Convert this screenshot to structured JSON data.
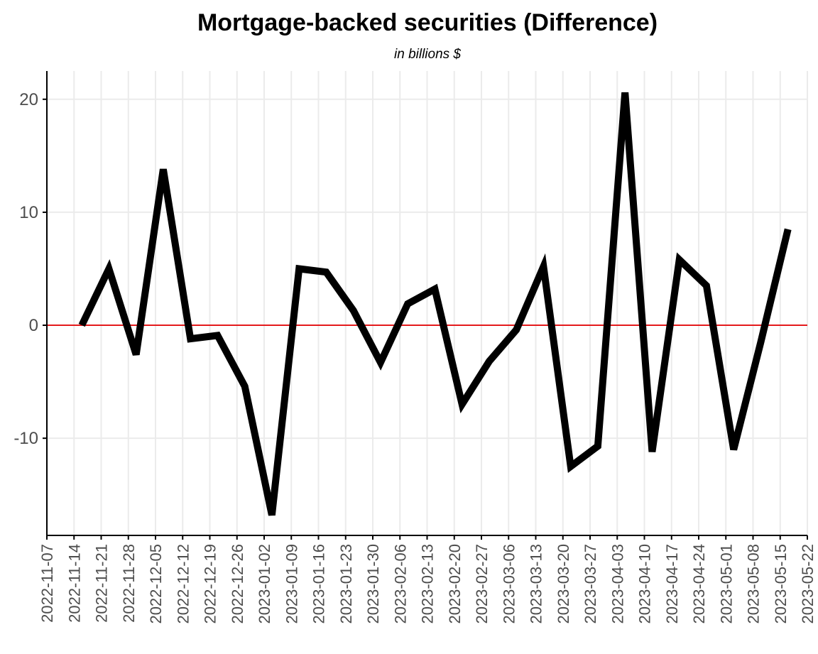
{
  "chart_data": {
    "type": "line",
    "title": "Mortgage-backed securities (Difference)",
    "subtitle": "in billions $",
    "xlabel": "",
    "ylabel": "",
    "x_tick_labels": [
      "2022-11-07",
      "2022-11-14",
      "2022-11-21",
      "2022-11-28",
      "2022-12-05",
      "2022-12-12",
      "2022-12-19",
      "2022-12-26",
      "2023-01-02",
      "2023-01-09",
      "2023-01-16",
      "2023-01-23",
      "2023-01-30",
      "2023-02-06",
      "2023-02-13",
      "2023-02-20",
      "2023-02-27",
      "2023-03-06",
      "2023-03-13",
      "2023-03-20",
      "2023-03-27",
      "2023-04-03",
      "2023-04-10",
      "2023-04-17",
      "2023-04-24",
      "2023-05-01",
      "2023-05-08",
      "2023-05-15",
      "2023-05-22"
    ],
    "y_tick_labels": [
      "-10",
      "0",
      "10",
      "20"
    ],
    "y_ticks": [
      -10,
      0,
      10,
      20
    ],
    "ylim": [
      -18.6,
      22.5
    ],
    "xlim": [
      "2022-11-07",
      "2023-05-22"
    ],
    "reference_line": {
      "y": 0,
      "color": "#e41a1c"
    },
    "grid": true,
    "series": [
      {
        "color": "#000000",
        "points": [
          {
            "x": "2022-11-16",
            "y": 0.0
          },
          {
            "x": "2022-11-23",
            "y": 5.0
          },
          {
            "x": "2022-11-30",
            "y": -2.6
          },
          {
            "x": "2022-12-07",
            "y": 13.8
          },
          {
            "x": "2022-12-14",
            "y": -1.2
          },
          {
            "x": "2022-12-21",
            "y": -0.9
          },
          {
            "x": "2022-12-28",
            "y": -5.4
          },
          {
            "x": "2023-01-04",
            "y": -16.8
          },
          {
            "x": "2023-01-11",
            "y": 5.0
          },
          {
            "x": "2023-01-18",
            "y": 4.7
          },
          {
            "x": "2023-01-25",
            "y": 1.3
          },
          {
            "x": "2023-02-01",
            "y": -3.3
          },
          {
            "x": "2023-02-08",
            "y": 1.9
          },
          {
            "x": "2023-02-15",
            "y": 3.2
          },
          {
            "x": "2023-02-22",
            "y": -7.0
          },
          {
            "x": "2023-03-01",
            "y": -3.2
          },
          {
            "x": "2023-03-08",
            "y": -0.4
          },
          {
            "x": "2023-03-15",
            "y": 5.2
          },
          {
            "x": "2023-03-22",
            "y": -12.5
          },
          {
            "x": "2023-03-29",
            "y": -10.7
          },
          {
            "x": "2023-04-05",
            "y": 20.6
          },
          {
            "x": "2023-04-12",
            "y": -11.2
          },
          {
            "x": "2023-04-19",
            "y": 5.8
          },
          {
            "x": "2023-04-26",
            "y": 3.5
          },
          {
            "x": "2023-05-03",
            "y": -11.0
          },
          {
            "x": "2023-05-10",
            "y": -1.5
          },
          {
            "x": "2023-05-17",
            "y": 8.5
          }
        ]
      }
    ]
  }
}
